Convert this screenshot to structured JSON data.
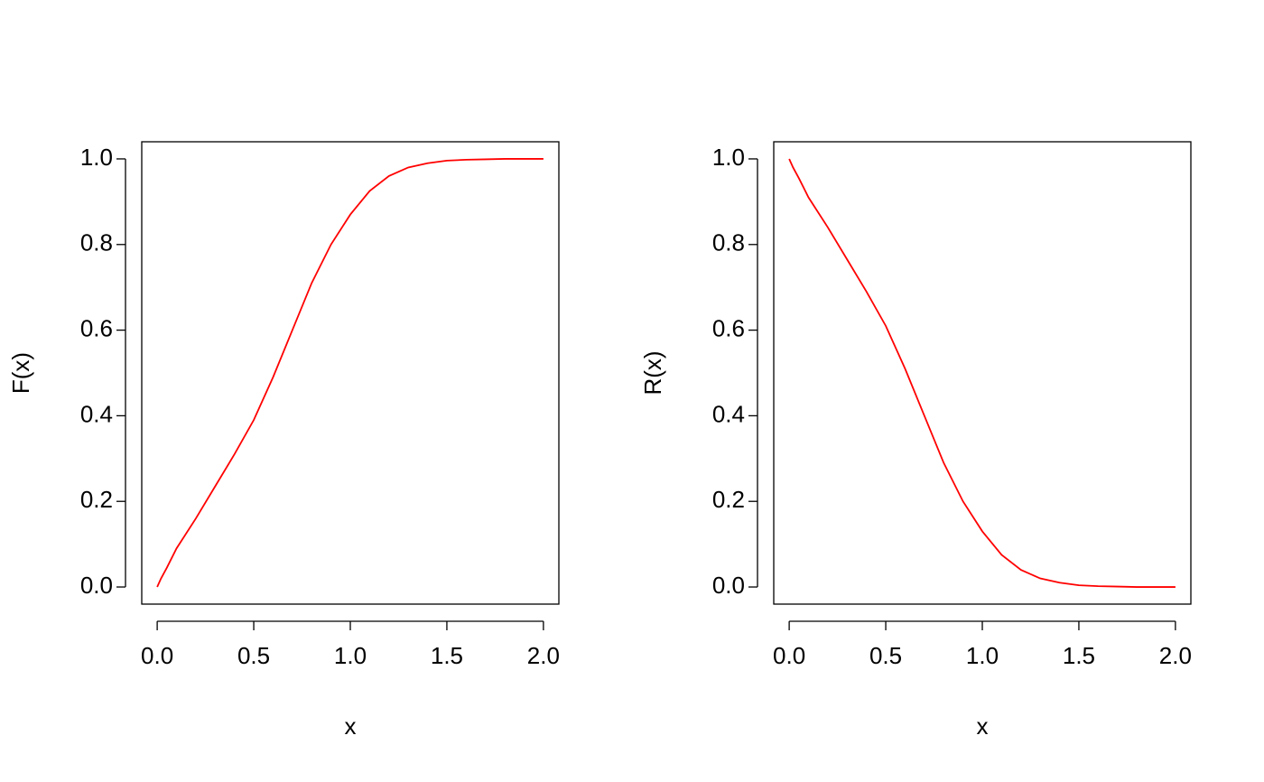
{
  "chart_data": [
    {
      "type": "line",
      "xlabel": "x",
      "ylabel": "F(x)",
      "color": "#ff0000",
      "x": [
        0,
        0.02,
        0.05,
        0.1,
        0.2,
        0.3,
        0.4,
        0.5,
        0.6,
        0.7,
        0.8,
        0.9,
        1.0,
        1.1,
        1.2,
        1.3,
        1.4,
        1.5,
        1.6,
        1.7,
        1.8,
        1.9,
        2.0
      ],
      "values": [
        0,
        0.02,
        0.045,
        0.09,
        0.16,
        0.235,
        0.31,
        0.39,
        0.49,
        0.6,
        0.71,
        0.8,
        0.87,
        0.925,
        0.96,
        0.98,
        0.99,
        0.996,
        0.998,
        0.999,
        1,
        1,
        1
      ],
      "xlim": [
        -0.08,
        2.08
      ],
      "ylim": [
        -0.04,
        1.04
      ],
      "xticks": [
        {
          "value": 0,
          "label": "0.0"
        },
        {
          "value": 0.5,
          "label": "0.5"
        },
        {
          "value": 1,
          "label": "1.0"
        },
        {
          "value": 1.5,
          "label": "1.5"
        },
        {
          "value": 2,
          "label": "2.0"
        }
      ],
      "yticks": [
        {
          "value": 0,
          "label": "0.0"
        },
        {
          "value": 0.2,
          "label": "0.2"
        },
        {
          "value": 0.4,
          "label": "0.4"
        },
        {
          "value": 0.6,
          "label": "0.6"
        },
        {
          "value": 0.8,
          "label": "0.8"
        },
        {
          "value": 1,
          "label": "1.0"
        }
      ]
    },
    {
      "type": "line",
      "xlabel": "x",
      "ylabel": "R(x)",
      "color": "#ff0000",
      "x": [
        0,
        0.02,
        0.05,
        0.1,
        0.2,
        0.3,
        0.4,
        0.5,
        0.6,
        0.7,
        0.8,
        0.9,
        1.0,
        1.1,
        1.2,
        1.3,
        1.4,
        1.5,
        1.6,
        1.7,
        1.8,
        1.9,
        2.0
      ],
      "values": [
        1,
        0.98,
        0.955,
        0.91,
        0.84,
        0.765,
        0.69,
        0.61,
        0.51,
        0.4,
        0.29,
        0.2,
        0.13,
        0.075,
        0.04,
        0.02,
        0.01,
        0.004,
        0.002,
        0.001,
        0,
        0,
        0
      ],
      "xlim": [
        -0.08,
        2.08
      ],
      "ylim": [
        -0.04,
        1.04
      ],
      "xticks": [
        {
          "value": 0,
          "label": "0.0"
        },
        {
          "value": 0.5,
          "label": "0.5"
        },
        {
          "value": 1,
          "label": "1.0"
        },
        {
          "value": 1.5,
          "label": "1.5"
        },
        {
          "value": 2,
          "label": "2.0"
        }
      ],
      "yticks": [
        {
          "value": 0,
          "label": "0.0"
        },
        {
          "value": 0.2,
          "label": "0.2"
        },
        {
          "value": 0.4,
          "label": "0.4"
        },
        {
          "value": 0.6,
          "label": "0.6"
        },
        {
          "value": 0.8,
          "label": "0.8"
        },
        {
          "value": 1,
          "label": "1.0"
        }
      ]
    }
  ]
}
